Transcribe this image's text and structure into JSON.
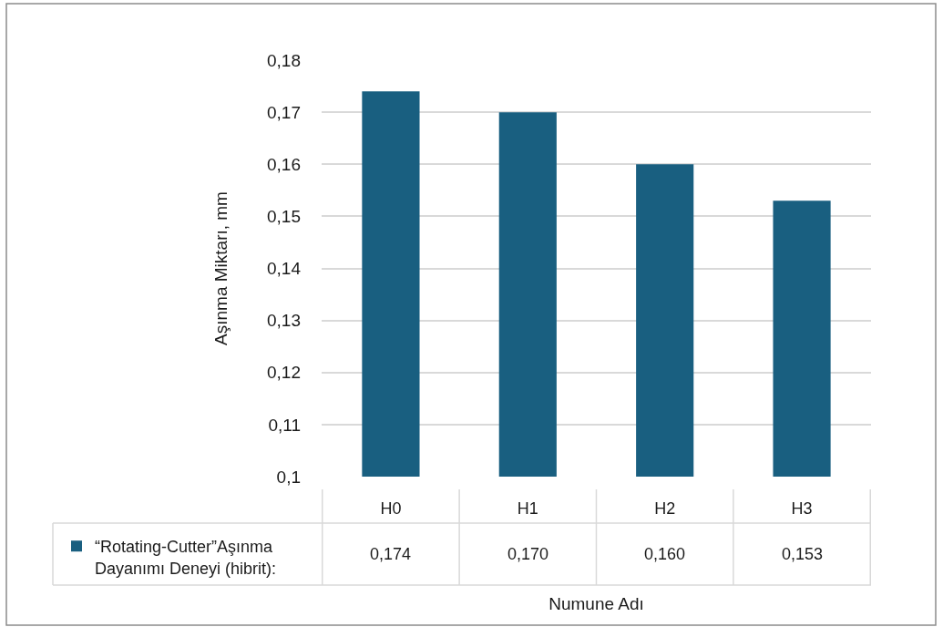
{
  "chart_data": {
    "type": "bar",
    "xlabel": "Numune Adı",
    "ylabel": "Aşınma Miktarı, mm",
    "categories": [
      "H0",
      "H1",
      "H2",
      "H3"
    ],
    "series": [
      {
        "name": "“Rotating-Cutter”Aşınma Dayanımı Deneyi (hibrit):",
        "color": "#195f80",
        "values": [
          0.174,
          0.17,
          0.16,
          0.153
        ],
        "value_labels": [
          "0,174",
          "0,170",
          "0,160",
          "0,153"
        ]
      }
    ],
    "ylim": [
      0.1,
      0.18
    ],
    "yticks": [
      {
        "value": 0.1,
        "label": "0,1"
      },
      {
        "value": 0.11,
        "label": "0,11"
      },
      {
        "value": 0.12,
        "label": "0,12"
      },
      {
        "value": 0.13,
        "label": "0,13"
      },
      {
        "value": 0.14,
        "label": "0,14"
      },
      {
        "value": 0.15,
        "label": "0,15"
      },
      {
        "value": 0.16,
        "label": "0,16"
      },
      {
        "value": 0.17,
        "label": "0,17"
      },
      {
        "value": 0.18,
        "label": "0,18"
      }
    ],
    "grid": "y",
    "legend": "bottom left"
  }
}
